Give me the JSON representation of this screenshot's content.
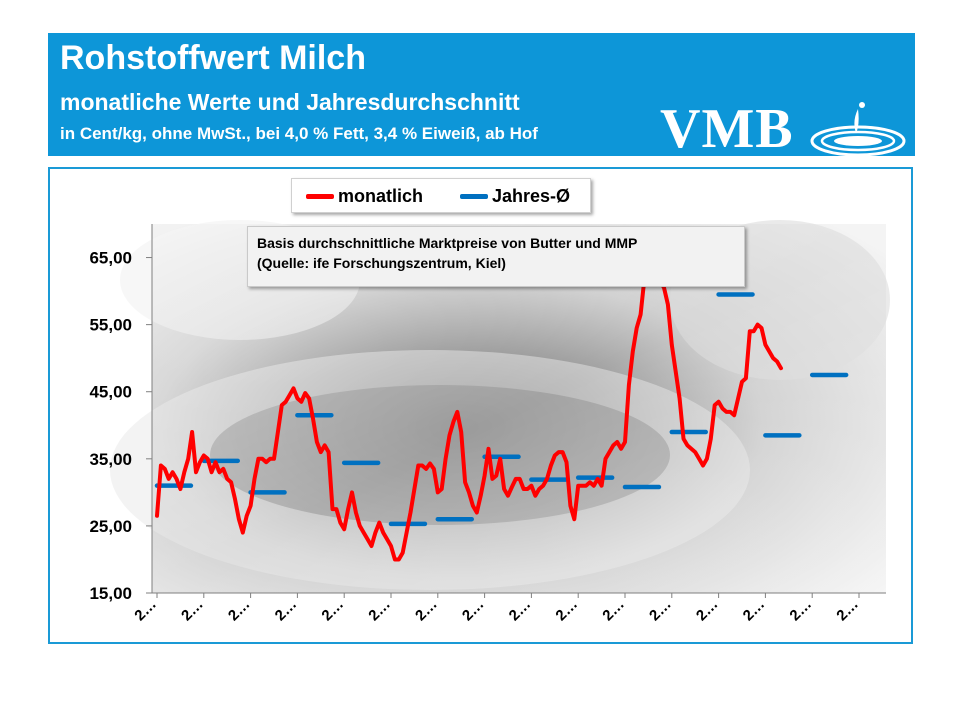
{
  "header": {
    "title": "Rohstoffwert Milch",
    "subtitle": "monatliche Werte und Jahresdurchschnitt",
    "subtitle2": "in Cent/kg, ohne MwSt., bei 4,0 % Fett, 3,4 % Eiweiß, ab Hof",
    "logo_text": "VMB",
    "color": "#0d96d8"
  },
  "note": {
    "line1": "Basis durchschnittliche Marktpreise von Butter und MMP",
    "line2": "(Quelle: ife Forschungszentrum, Kiel)"
  },
  "chart_data": {
    "type": "line",
    "title": "",
    "ylim": [
      15,
      70
    ],
    "yticks": [
      15,
      25,
      35,
      45,
      55,
      65
    ],
    "ytick_labels": [
      "15,00",
      "25,00",
      "35,00",
      "45,00",
      "55,00",
      "65,00"
    ],
    "xtick_labels": [
      "2…",
      "2…",
      "2…",
      "2…",
      "2…",
      "2…",
      "2…",
      "2…",
      "2…",
      "2…",
      "2…",
      "2…",
      "2…",
      "2…",
      "2…",
      "2…"
    ],
    "grid": false,
    "legend": "top-center",
    "series": [
      {
        "name": "monatlich",
        "type": "line",
        "color": "#ff0000",
        "values": [
          26.5,
          34,
          33.5,
          32,
          33,
          32,
          30.5,
          33,
          35,
          39,
          33,
          34.5,
          35.5,
          35,
          33,
          34.5,
          33,
          33.5,
          32,
          31.5,
          29,
          26,
          24,
          26.5,
          28,
          32,
          35,
          35,
          34.5,
          35,
          35,
          39,
          43,
          43.5,
          44.5,
          45.5,
          44,
          43.5,
          44.8,
          44,
          41,
          37.5,
          36,
          37,
          36,
          27.5,
          27.5,
          25.5,
          24.5,
          27.5,
          30,
          27,
          25,
          24,
          23,
          22,
          24,
          25.5,
          24,
          23,
          22,
          20,
          20,
          21,
          24,
          27,
          30.5,
          34,
          34,
          33.5,
          34.3,
          33.5,
          30,
          30.5,
          35,
          38.5,
          40.5,
          42,
          39,
          31.5,
          30,
          28,
          27,
          29.5,
          32.5,
          36.5,
          32,
          32.5,
          35,
          30.5,
          29.5,
          30.8,
          32,
          32,
          30.5,
          30.5,
          31,
          29.5,
          30.5,
          31,
          32,
          34,
          35.5,
          36,
          36,
          34.5,
          28,
          26,
          31,
          31,
          31,
          31.5,
          31,
          32,
          31,
          35,
          36,
          37,
          37.5,
          36.5,
          37.5,
          46,
          51,
          54.5,
          56.5,
          62,
          62.5,
          61,
          62,
          61.5,
          60.5,
          58,
          52,
          48,
          44,
          38,
          37,
          36.5,
          36,
          35,
          34,
          35,
          38,
          43,
          43.5,
          42.5,
          42,
          42,
          41.5,
          44,
          46.5,
          47,
          54,
          54,
          55,
          54.5,
          52,
          51,
          50,
          49.5,
          48.5
        ]
      },
      {
        "name": "Jahres-Ø",
        "type": "segments",
        "color": "#0070c0",
        "values": [
          31,
          34.7,
          30,
          41.5,
          34.4,
          25.3,
          26,
          35.3,
          31.9,
          32.2,
          30.8,
          39,
          59.5,
          38.5,
          47.5
        ]
      }
    ]
  }
}
